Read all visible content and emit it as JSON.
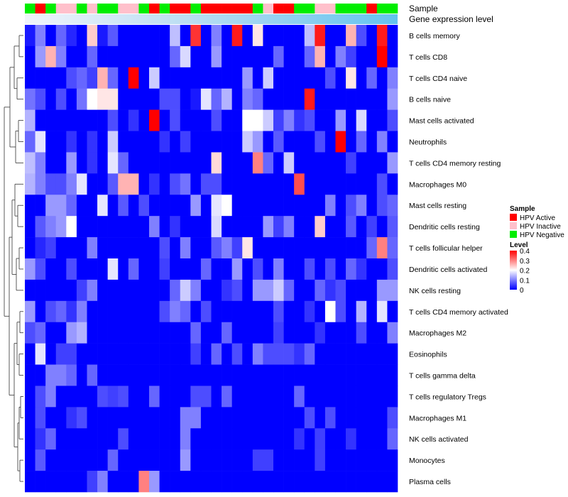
{
  "chart_data": {
    "type": "heatmap",
    "annotation_titles": [
      "Sample",
      "Gene expression level"
    ],
    "rows": [
      "B cells memory",
      "T cells CD8",
      "T cells CD4 naive",
      "B cells naive",
      "Mast cells activated",
      "Neutrophils",
      "T cells CD4 memory resting",
      "Macrophages M0",
      "Mast cells resting",
      "Dendritic cells resting",
      "T cells follicular helper",
      "Dendritic cells activated",
      "NK cells resting",
      "T cells CD4 memory activated",
      "Macrophages M2",
      "Eosinophils",
      "T cells gamma delta",
      "T cells regulatory  Tregs",
      "Macrophages M1",
      "NK cells activated",
      "Monocytes",
      "Plasma cells"
    ],
    "sample_groups": [
      "HPV Active",
      "HPV Inactive",
      "HPV Negative"
    ],
    "sample_group_colors": [
      "#ff0000",
      "#ffc0cb",
      "#00ee00"
    ],
    "samples": [
      "N",
      "A",
      "N",
      "I",
      "I",
      "N",
      "I",
      "N",
      "N",
      "I",
      "I",
      "N",
      "A",
      "N",
      "A",
      "A",
      "N",
      "A",
      "A",
      "A",
      "A",
      "A",
      "N",
      "I",
      "A",
      "A",
      "N",
      "N",
      "I",
      "I",
      "N",
      "N",
      "N",
      "A",
      "N",
      "N"
    ],
    "legend": {
      "sample_title": "Sample",
      "level_title": "Level",
      "level_ticks": [
        "0.4",
        "0.3",
        "0.2",
        "0.1",
        "0"
      ],
      "level_range": [
        0,
        0.4
      ]
    },
    "values": [
      [
        0.02,
        0.1,
        0.0,
        0.08,
        0.03,
        0.0,
        0.24,
        0.02,
        0.07,
        0.0,
        0.0,
        0.0,
        0.0,
        0.0,
        0.15,
        0.0,
        0.36,
        0.0,
        0.1,
        0.0,
        0.38,
        0.0,
        0.22,
        0.0,
        0.0,
        0.0,
        0.0,
        0.15,
        0.38,
        0.0,
        0.0,
        0.26,
        0.06,
        0.0,
        0.38,
        0.0
      ],
      [
        0.0,
        0.12,
        0.26,
        0.1,
        0.0,
        0.0,
        0.08,
        0.0,
        0.0,
        0.0,
        0.0,
        0.0,
        0.0,
        0.0,
        0.08,
        0.17,
        0.0,
        0.0,
        0.12,
        0.0,
        0.0,
        0.0,
        0.0,
        0.0,
        0.08,
        0.0,
        0.0,
        0.08,
        0.26,
        0.0,
        0.1,
        0.05,
        0.0,
        0.0,
        0.4,
        0.0
      ],
      [
        0.0,
        0.0,
        0.0,
        0.0,
        0.06,
        0.08,
        0.05,
        0.26,
        0.08,
        0.0,
        0.4,
        0.0,
        0.16,
        0.0,
        0.0,
        0.0,
        0.0,
        0.0,
        0.0,
        0.0,
        0.0,
        0.12,
        0.0,
        0.16,
        0.0,
        0.0,
        0.0,
        0.0,
        0.0,
        0.06,
        0.0,
        0.22,
        0.0,
        0.08,
        0.0,
        0.1
      ],
      [
        0.09,
        0.06,
        0.0,
        0.06,
        0.0,
        0.09,
        0.2,
        0.22,
        0.22,
        0.0,
        0.0,
        0.0,
        0.0,
        0.06,
        0.06,
        0.0,
        0.02,
        0.18,
        0.08,
        0.14,
        0.0,
        0.1,
        0.08,
        0.0,
        0.0,
        0.0,
        0.0,
        0.38,
        0.0,
        0.0,
        0.0,
        0.0,
        0.0,
        0.0,
        0.0,
        0.12
      ],
      [
        0.14,
        0.0,
        0.0,
        0.0,
        0.0,
        0.0,
        0.0,
        0.0,
        0.06,
        0.0,
        0.04,
        0.0,
        0.4,
        0.0,
        0.06,
        0.0,
        0.0,
        0.0,
        0.06,
        0.0,
        0.0,
        0.2,
        0.2,
        0.16,
        0.05,
        0.1,
        0.04,
        0.06,
        0.0,
        0.0,
        0.12,
        0.0,
        0.17,
        0.0,
        0.0,
        0.06
      ],
      [
        0.08,
        0.18,
        0.0,
        0.0,
        0.04,
        0.0,
        0.04,
        0.0,
        0.16,
        0.0,
        0.0,
        0.0,
        0.0,
        0.04,
        0.0,
        0.05,
        0.0,
        0.0,
        0.0,
        0.0,
        0.0,
        0.16,
        0.12,
        0.0,
        0.07,
        0.0,
        0.0,
        0.0,
        0.06,
        0.0,
        0.4,
        0.0,
        0.08,
        0.0,
        0.1,
        0.0
      ],
      [
        0.15,
        0.1,
        0.0,
        0.0,
        0.12,
        0.0,
        0.04,
        0.0,
        0.18,
        0.08,
        0.0,
        0.0,
        0.0,
        0.0,
        0.0,
        0.0,
        0.0,
        0.0,
        0.23,
        0.0,
        0.0,
        0.0,
        0.3,
        0.08,
        0.0,
        0.16,
        0.0,
        0.0,
        0.0,
        0.0,
        0.0,
        0.05,
        0.0,
        0.0,
        0.0,
        0.12
      ],
      [
        0.14,
        0.1,
        0.06,
        0.06,
        0.1,
        0.18,
        0.0,
        0.0,
        0.07,
        0.26,
        0.26,
        0.0,
        0.04,
        0.0,
        0.06,
        0.09,
        0.0,
        0.06,
        0.06,
        0.0,
        0.0,
        0.0,
        0.0,
        0.0,
        0.0,
        0.0,
        0.34,
        0.0,
        0.0,
        0.0,
        0.0,
        0.0,
        0.0,
        0.0,
        0.06,
        0.0
      ],
      [
        0.0,
        0.0,
        0.12,
        0.12,
        0.08,
        0.0,
        0.0,
        0.18,
        0.0,
        0.07,
        0.0,
        0.06,
        0.0,
        0.0,
        0.0,
        0.0,
        0.12,
        0.0,
        0.18,
        0.2,
        0.0,
        0.0,
        0.0,
        0.0,
        0.0,
        0.0,
        0.0,
        0.0,
        0.0,
        0.1,
        0.0,
        0.06,
        0.1,
        0.0,
        0.06,
        0.08
      ],
      [
        0.0,
        0.07,
        0.1,
        0.12,
        0.2,
        0.0,
        0.0,
        0.0,
        0.0,
        0.0,
        0.0,
        0.0,
        0.1,
        0.0,
        0.04,
        0.0,
        0.0,
        0.0,
        0.17,
        0.0,
        0.0,
        0.0,
        0.0,
        0.12,
        0.05,
        0.1,
        0.0,
        0.0,
        0.24,
        0.0,
        0.0,
        0.07,
        0.0,
        0.05,
        0.0,
        0.07
      ],
      [
        0.0,
        0.03,
        0.05,
        0.0,
        0.0,
        0.0,
        0.1,
        0.0,
        0.0,
        0.0,
        0.0,
        0.0,
        0.0,
        0.06,
        0.0,
        0.1,
        0.0,
        0.0,
        0.07,
        0.1,
        0.05,
        0.22,
        0.0,
        0.0,
        0.0,
        0.0,
        0.0,
        0.0,
        0.0,
        0.0,
        0.0,
        0.0,
        0.0,
        0.08,
        0.3,
        0.08
      ],
      [
        0.12,
        0.06,
        0.0,
        0.0,
        0.06,
        0.0,
        0.0,
        0.0,
        0.18,
        0.0,
        0.08,
        0.0,
        0.0,
        0.05,
        0.0,
        0.0,
        0.0,
        0.08,
        0.0,
        0.0,
        0.12,
        0.0,
        0.06,
        0.0,
        0.1,
        0.0,
        0.0,
        0.06,
        0.0,
        0.06,
        0.0,
        0.08,
        0.04,
        0.0,
        0.0,
        0.06
      ],
      [
        0.0,
        0.0,
        0.0,
        0.0,
        0.0,
        0.05,
        0.1,
        0.0,
        0.0,
        0.0,
        0.0,
        0.0,
        0.0,
        0.0,
        0.08,
        0.16,
        0.1,
        0.0,
        0.0,
        0.04,
        0.06,
        0.0,
        0.12,
        0.12,
        0.16,
        0.08,
        0.0,
        0.0,
        0.08,
        0.04,
        0.06,
        0.0,
        0.0,
        0.0,
        0.12,
        0.12
      ],
      [
        0.12,
        0.0,
        0.06,
        0.08,
        0.04,
        0.1,
        0.0,
        0.0,
        0.0,
        0.0,
        0.0,
        0.0,
        0.0,
        0.06,
        0.1,
        0.08,
        0.0,
        0.06,
        0.0,
        0.0,
        0.0,
        0.0,
        0.0,
        0.0,
        0.06,
        0.0,
        0.0,
        0.04,
        0.0,
        0.2,
        0.06,
        0.0,
        0.14,
        0.0,
        0.18,
        0.0
      ],
      [
        0.06,
        0.08,
        0.0,
        0.0,
        0.12,
        0.14,
        0.0,
        0.0,
        0.0,
        0.0,
        0.0,
        0.0,
        0.0,
        0.0,
        0.0,
        0.0,
        0.08,
        0.0,
        0.0,
        0.08,
        0.0,
        0.0,
        0.0,
        0.0,
        0.05,
        0.0,
        0.0,
        0.0,
        0.04,
        0.0,
        0.0,
        0.0,
        0.06,
        0.0,
        0.0,
        0.1
      ],
      [
        0.0,
        0.18,
        0.0,
        0.05,
        0.05,
        0.0,
        0.0,
        0.0,
        0.0,
        0.0,
        0.0,
        0.0,
        0.0,
        0.0,
        0.0,
        0.0,
        0.05,
        0.0,
        0.08,
        0.0,
        0.06,
        0.0,
        0.1,
        0.06,
        0.06,
        0.06,
        0.04,
        0.08,
        0.0,
        0.0,
        0.0,
        0.0,
        0.0,
        0.0,
        0.0,
        0.0
      ],
      [
        0.0,
        0.0,
        0.1,
        0.1,
        0.08,
        0.0,
        0.08,
        0.0,
        0.0,
        0.0,
        0.0,
        0.0,
        0.0,
        0.0,
        0.0,
        0.0,
        0.0,
        0.0,
        0.0,
        0.0,
        0.0,
        0.0,
        0.0,
        0.0,
        0.0,
        0.0,
        0.0,
        0.0,
        0.0,
        0.0,
        0.0,
        0.0,
        0.0,
        0.0,
        0.0,
        0.0
      ],
      [
        0.0,
        0.06,
        0.1,
        0.0,
        0.0,
        0.0,
        0.0,
        0.06,
        0.05,
        0.06,
        0.0,
        0.0,
        0.08,
        0.0,
        0.0,
        0.0,
        0.06,
        0.06,
        0.0,
        0.08,
        0.0,
        0.0,
        0.0,
        0.0,
        0.0,
        0.0,
        0.08,
        0.0,
        0.0,
        0.0,
        0.0,
        0.0,
        0.0,
        0.0,
        0.0,
        0.0
      ],
      [
        0.0,
        0.06,
        0.0,
        0.0,
        0.04,
        0.06,
        0.0,
        0.0,
        0.0,
        0.0,
        0.0,
        0.0,
        0.0,
        0.0,
        0.0,
        0.1,
        0.1,
        0.0,
        0.0,
        0.0,
        0.0,
        0.0,
        0.0,
        0.0,
        0.0,
        0.0,
        0.0,
        0.06,
        0.0,
        0.06,
        0.0,
        0.0,
        0.0,
        0.0,
        0.0,
        0.06
      ],
      [
        0.0,
        0.04,
        0.08,
        0.0,
        0.0,
        0.0,
        0.0,
        0.0,
        0.0,
        0.06,
        0.0,
        0.0,
        0.0,
        0.0,
        0.0,
        0.1,
        0.0,
        0.0,
        0.0,
        0.0,
        0.0,
        0.0,
        0.0,
        0.0,
        0.0,
        0.0,
        0.04,
        0.0,
        0.05,
        0.0,
        0.0,
        0.04,
        0.0,
        0.0,
        0.0,
        0.08
      ],
      [
        0.0,
        0.07,
        0.0,
        0.0,
        0.0,
        0.0,
        0.0,
        0.0,
        0.08,
        0.0,
        0.0,
        0.0,
        0.0,
        0.0,
        0.0,
        0.12,
        0.0,
        0.0,
        0.0,
        0.0,
        0.0,
        0.0,
        0.05,
        0.05,
        0.0,
        0.0,
        0.0,
        0.0,
        0.05,
        0.0,
        0.0,
        0.0,
        0.0,
        0.0,
        0.0,
        0.0
      ],
      [
        0.0,
        0.0,
        0.0,
        0.0,
        0.0,
        0.0,
        0.05,
        0.1,
        0.0,
        0.0,
        0.0,
        0.3,
        0.12,
        0.0,
        0.0,
        0.0,
        0.0,
        0.0,
        0.0,
        0.0,
        0.0,
        0.0,
        0.0,
        0.0,
        0.0,
        0.0,
        0.0,
        0.0,
        0.0,
        0.0,
        0.0,
        0.0,
        0.0,
        0.0,
        0.0,
        0.0
      ]
    ]
  }
}
